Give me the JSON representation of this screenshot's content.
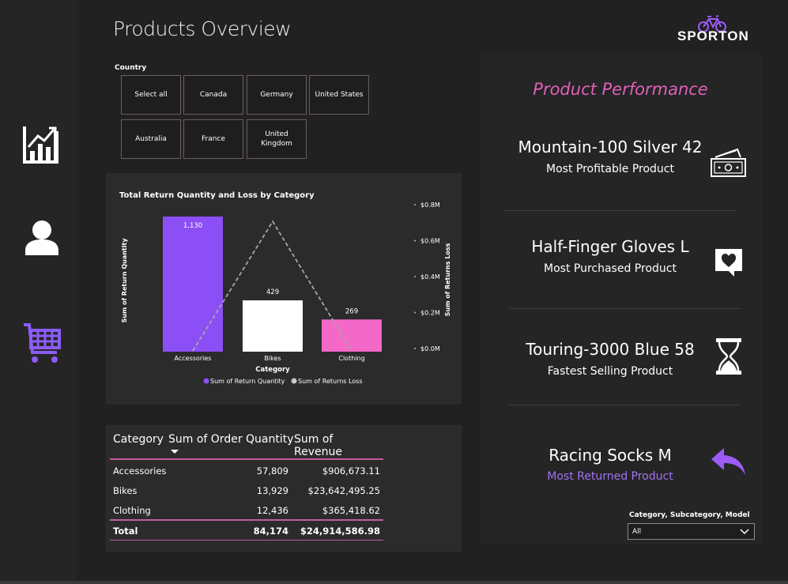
{
  "page": {
    "title": "Products Overview"
  },
  "logo": {
    "text": "SPORTON",
    "accent": "#9b5cf6"
  },
  "nav": [
    {
      "name": "dashboard",
      "icon": "bar-chart-growth-icon"
    },
    {
      "name": "customers",
      "icon": "user-icon"
    },
    {
      "name": "products",
      "icon": "shopping-cart-icon",
      "active_color": "#8b5cf6"
    }
  ],
  "country_slicer": {
    "label": "Country",
    "options": [
      "Select all",
      "Canada",
      "Germany",
      "United States",
      "Australia",
      "France",
      "United Kingdom"
    ]
  },
  "chart_data": {
    "type": "bar",
    "title": "Total Return Quantity and Loss by Category",
    "xlabel": "Category",
    "ylabel": "Sum of Return Quantity",
    "y2label": "Sum of Returns Loss",
    "categories": [
      "Accessories",
      "Bikes",
      "Clothing"
    ],
    "series": [
      {
        "name": "Sum of Return Quantity",
        "kind": "bar",
        "values": [
          1130,
          429,
          269
        ],
        "data_labels": [
          "1,130",
          "429",
          "269"
        ],
        "colors": [
          "#8b4ff5",
          "#ffffff",
          "#f468c8"
        ]
      },
      {
        "name": "Sum of Returns Loss",
        "kind": "line",
        "values": [
          0.0,
          0.72,
          0.0
        ],
        "unit": "$M",
        "color": "#a6a6a6",
        "dashed": true
      }
    ],
    "y2_ticks": [
      "$0.8M",
      "$0.6M",
      "$0.4M",
      "$0.2M",
      "$0.0M"
    ],
    "y2lim": [
      0,
      0.8
    ],
    "legend": {
      "position": "bottom",
      "marker_colors": [
        "#8b4ff5",
        "#c8c8c8"
      ]
    }
  },
  "table": {
    "headers": [
      "Category",
      "Sum of Order Quantity",
      "Sum of Revenue"
    ],
    "rows": [
      [
        "Accessories",
        "57,809",
        "$906,673.11"
      ],
      [
        "Bikes",
        "13,929",
        "$23,642,495.25"
      ],
      [
        "Clothing",
        "12,436",
        "$365,418.62"
      ]
    ],
    "total": [
      "Total",
      "84,174",
      "$24,914,586.98"
    ],
    "accent": "#c45d9c"
  },
  "performance": {
    "title": "Product Performance",
    "kpis": [
      {
        "name": "Mountain-100 Silver 42",
        "label": "Most Profitable Product",
        "icon": "money-icon"
      },
      {
        "name": "Half-Finger Gloves L",
        "label": "Most Purchased Product",
        "icon": "heart-message-icon"
      },
      {
        "name": "Touring-3000 Blue 58",
        "label": "Fastest Selling Product",
        "icon": "hourglass-icon"
      },
      {
        "name": "Racing Socks M",
        "label": "Most Returned Product",
        "icon": "return-arrow-icon",
        "label_color": "#a071f5"
      }
    ]
  },
  "model_filter": {
    "label": "Category, Subcategory, Model",
    "value": "All"
  }
}
